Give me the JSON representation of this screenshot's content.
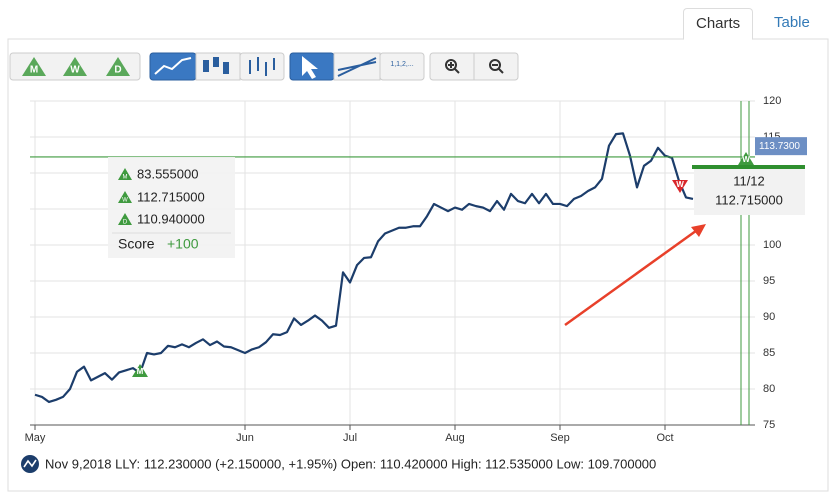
{
  "tabs": [
    "Charts",
    "Table"
  ],
  "toolbar": {
    "signal_buttons": [
      "M",
      "W",
      "D"
    ],
    "fib_button": "1,1,2,..."
  },
  "chart_data": {
    "type": "line",
    "color": "#1c3d6b",
    "categories": [
      "May",
      null,
      null,
      null,
      null,
      null,
      null,
      null,
      null,
      null,
      null,
      null,
      null,
      null,
      null,
      null,
      null,
      null,
      null,
      null,
      null,
      null,
      null,
      null,
      null,
      null,
      null,
      null,
      null,
      null,
      "Jun",
      null,
      null,
      null,
      null,
      null,
      null,
      null,
      null,
      null,
      null,
      null,
      null,
      null,
      null,
      "Jul",
      null,
      null,
      null,
      null,
      null,
      null,
      null,
      null,
      null,
      null,
      null,
      null,
      null,
      null,
      "Aug",
      null,
      null,
      null,
      null,
      null,
      null,
      null,
      null,
      null,
      null,
      null,
      null,
      null,
      null,
      "Sep",
      null,
      null,
      null,
      null,
      null,
      null,
      null,
      null,
      null,
      null,
      null,
      null,
      null,
      null,
      "Oct",
      null,
      null,
      null,
      null
    ],
    "values": [
      79.2,
      78.9,
      78.2,
      78.5,
      78.9,
      80,
      82.4,
      83.1,
      81.2,
      81.7,
      82.2,
      81.3,
      82.3,
      82.6,
      82.9,
      82.2,
      85,
      84.8,
      85,
      86,
      85.8,
      86.2,
      85.8,
      86.4,
      86.9,
      86.1,
      86.6,
      85.9,
      85.8,
      85.4,
      85,
      85.5,
      85.8,
      86.5,
      87.6,
      87.5,
      87.9,
      89.8,
      88.9,
      89.5,
      90.2,
      89.5,
      88.5,
      88.8,
      96.2,
      94.8,
      97.2,
      98.2,
      98.3,
      100.5,
      101.6,
      102,
      102.4,
      102.4,
      102.6,
      102.6,
      104,
      105.7,
      105.2,
      104.7,
      105.2,
      104.9,
      105.7,
      105.4,
      105.2,
      104.7,
      106.1,
      104.9,
      107.1,
      106.1,
      105.8,
      107.1,
      105.8,
      107.1,
      105.7,
      105.7,
      105.4,
      106.4,
      106.8,
      107.5,
      108,
      109.2,
      113.8,
      115.4,
      115.5,
      112.4,
      108,
      111,
      111.7,
      113.5,
      112.4,
      112.1,
      108.9,
      106.6,
      106.4
    ],
    "ylim": [
      75,
      120
    ],
    "yticks": [
      75,
      80,
      85,
      90,
      95,
      100,
      105,
      110,
      115,
      120
    ],
    "grid": true,
    "reference_line": 112.23,
    "reference_color": "#3f9a3f",
    "price_badge": {
      "value": 113.73,
      "label": "113.7300"
    },
    "markers": [
      "M",
      "W",
      "W"
    ]
  },
  "info_box": {
    "rows": [
      {
        "icon": "M",
        "value": "83.555000"
      },
      {
        "icon": "W",
        "value": "112.715000"
      },
      {
        "icon": "D",
        "value": "110.940000"
      }
    ],
    "score_label": "Score",
    "score_value": "+100"
  },
  "tooltip": {
    "date": "11/12",
    "value": "112.715000"
  },
  "status_line": "Nov 9,2018 LLY: 112.230000 (+2.150000, +1.95%) Open: 110.420000 High: 112.535000 Low: 109.700000"
}
